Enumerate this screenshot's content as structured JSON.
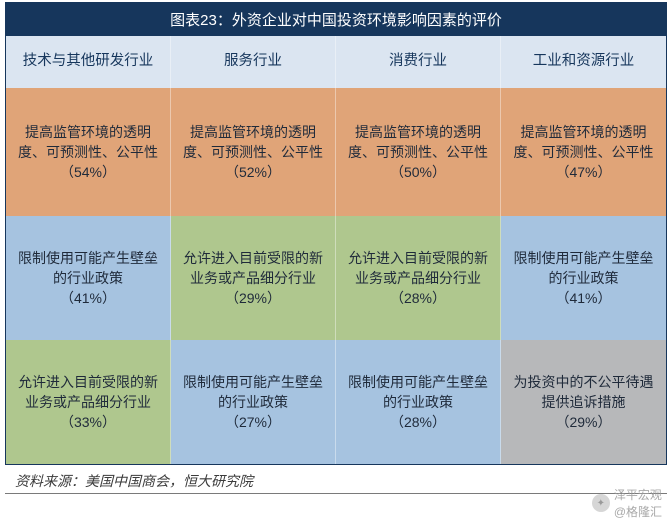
{
  "title": "图表23：外资企业对中国投资环境影响因素的评价",
  "columns": [
    "技术与其他研发行业",
    "服务行业",
    "消费行业",
    "工业和资源行业"
  ],
  "rows": [
    [
      {
        "text": "提高监管环境的透明度、可预测性、公平性",
        "pct": "（54%）",
        "colorKey": "orange"
      },
      {
        "text": "提高监管环境的透明度、可预测性、公平性",
        "pct": "（52%）",
        "colorKey": "orange"
      },
      {
        "text": "提高监管环境的透明度、可预测性、公平性",
        "pct": "（50%）",
        "colorKey": "orange"
      },
      {
        "text": "提高监管环境的透明度、可预测性、公平性",
        "pct": "（47%）",
        "colorKey": "orange"
      }
    ],
    [
      {
        "text": "限制使用可能产生壁垒的行业政策",
        "pct": "（41%）",
        "colorKey": "blue"
      },
      {
        "text": "允许进入目前受限的新业务或产品细分行业",
        "pct": "（29%）",
        "colorKey": "green"
      },
      {
        "text": "允许进入目前受限的新业务或产品细分行业",
        "pct": "（28%）",
        "colorKey": "green"
      },
      {
        "text": "限制使用可能产生壁垒的行业政策",
        "pct": "（41%）",
        "colorKey": "blue"
      }
    ],
    [
      {
        "text": "允许进入目前受限的新业务或产品细分行业",
        "pct": "（33%）",
        "colorKey": "green"
      },
      {
        "text": "限制使用可能产生壁垒的行业政策",
        "pct": "（27%）",
        "colorKey": "blue"
      },
      {
        "text": "限制使用可能产生壁垒的行业政策",
        "pct": "（28%）",
        "colorKey": "blue"
      },
      {
        "text": "为投资中的不公平待遇提供追诉措施",
        "pct": "（29%）",
        "colorKey": "gray"
      }
    ]
  ],
  "colors": {
    "orange": "#e0a478",
    "blue": "#a6c3e0",
    "green": "#afc78e",
    "gray": "#b7b8ba",
    "header_bg": "#dbe5f1",
    "title_bg": "#16365c"
  },
  "source": "资料来源：美国中国商会，恒大研究院",
  "watermark": {
    "name": "泽平宏观",
    "sub": "@格隆汇"
  }
}
